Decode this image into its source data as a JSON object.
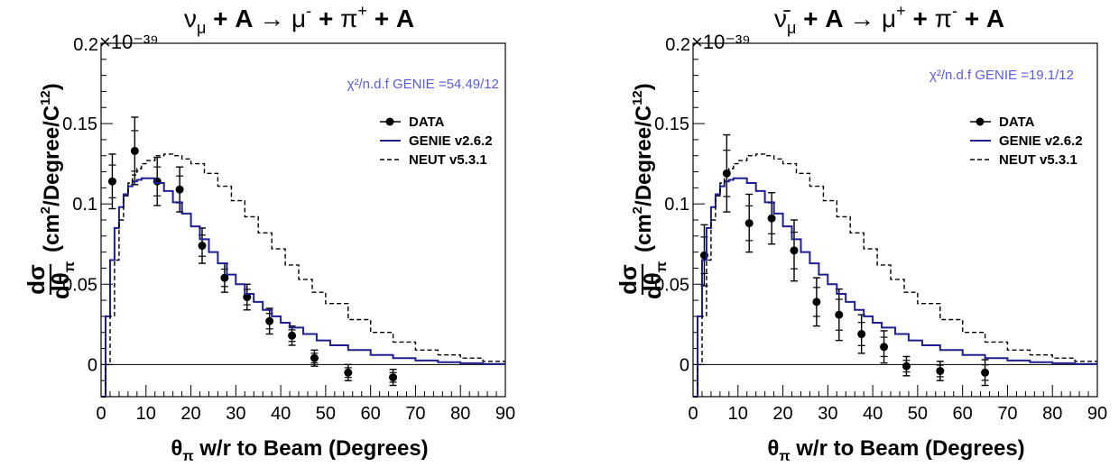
{
  "chart_data": [
    {
      "type": "line",
      "title": "×10⁻³⁹ νμ + A → μ⁻ + π⁺ + A",
      "exponent_label": "×10⁻³⁹",
      "title_parts": [
        "ν",
        "μ",
        " + A → ",
        "μ",
        "-",
        " + ",
        "π",
        "+",
        " + A"
      ],
      "xlabel": "θπ w/r to Beam (Degrees)",
      "ylabel": "dσ/dθπ (cm²/Degree/C¹²)",
      "xlim": [
        0,
        90
      ],
      "ylim": [
        -0.02,
        0.2
      ],
      "xticks": [
        "0",
        "10",
        "20",
        "30",
        "40",
        "50",
        "60",
        "70",
        "80",
        "90"
      ],
      "yticks": [
        "0",
        "0.05",
        "0.1",
        "0.15",
        "0.2"
      ],
      "annotation": "χ²/n.d.f GENIE =54.49/12",
      "legend_placement": "top-right",
      "legend": [
        "DATA",
        "GENIE v2.6.2",
        "NEUT v5.3.1"
      ],
      "series": [
        {
          "name": "DATA",
          "style": "points",
          "x": [
            2.5,
            7.5,
            12.5,
            17.5,
            22.5,
            27.5,
            32.5,
            37.5,
            42.5,
            47.5,
            55,
            65
          ],
          "y": [
            0.114,
            0.133,
            0.114,
            0.109,
            0.074,
            0.054,
            0.042,
            0.027,
            0.018,
            0.004,
            -0.005,
            -0.008
          ],
          "err": [
            0.017,
            0.021,
            0.015,
            0.014,
            0.011,
            0.009,
            0.008,
            0.008,
            0.006,
            0.005,
            0.005,
            0.005
          ]
        },
        {
          "name": "GENIE v2.6.2",
          "style": "step",
          "color": "#1f1f8f",
          "x": [
            0,
            1,
            2,
            3,
            4,
            5,
            6,
            7,
            8,
            9,
            10,
            12,
            14,
            16,
            18,
            20,
            22,
            24,
            26,
            28,
            30,
            32,
            34,
            36,
            38,
            40,
            42,
            45,
            48,
            51,
            55,
            60,
            65,
            70,
            75,
            80,
            85,
            90
          ],
          "y": [
            -0.02,
            0.03,
            0.065,
            0.085,
            0.098,
            0.106,
            0.111,
            0.114,
            0.115,
            0.116,
            0.116,
            0.113,
            0.108,
            0.101,
            0.094,
            0.086,
            0.078,
            0.07,
            0.063,
            0.056,
            0.05,
            0.044,
            0.039,
            0.034,
            0.03,
            0.026,
            0.023,
            0.019,
            0.015,
            0.012,
            0.009,
            0.006,
            0.004,
            0.0025,
            0.0015,
            0.0008,
            0.0004,
            0.0002
          ]
        },
        {
          "name": "NEUT v5.3.1",
          "style": "dashed-step",
          "color": "#000000",
          "x": [
            0,
            1,
            2,
            3,
            4,
            5,
            6,
            7,
            8,
            9,
            10,
            12,
            14,
            16,
            18,
            20,
            23,
            26,
            29,
            32,
            35,
            38,
            41,
            44,
            47,
            50,
            55,
            60,
            65,
            70,
            75,
            80,
            85,
            90
          ],
          "y": [
            -0.02,
            0.0,
            0.03,
            0.065,
            0.09,
            0.105,
            0.113,
            0.118,
            0.122,
            0.125,
            0.127,
            0.13,
            0.131,
            0.13,
            0.128,
            0.125,
            0.119,
            0.111,
            0.102,
            0.092,
            0.082,
            0.072,
            0.062,
            0.053,
            0.045,
            0.038,
            0.028,
            0.02,
            0.014,
            0.009,
            0.006,
            0.004,
            0.002,
            0.001
          ]
        }
      ]
    },
    {
      "type": "line",
      "title": "×10⁻³⁹ ν̄μ + A → μ⁺ + π⁻ + A",
      "exponent_label": "×10⁻³⁹",
      "title_parts": [
        "ν̄",
        "μ",
        " + A → ",
        "μ",
        "+",
        " + ",
        "π",
        "-",
        " + A"
      ],
      "xlabel": "θπ w/r to Beam (Degrees)",
      "ylabel": "dσ/dθπ (cm²/Degree/C¹²)",
      "xlim": [
        0,
        90
      ],
      "ylim": [
        -0.02,
        0.2
      ],
      "xticks": [
        "0",
        "10",
        "20",
        "30",
        "40",
        "50",
        "60",
        "70",
        "80",
        "90"
      ],
      "yticks": [
        "0",
        "0.05",
        "0.1",
        "0.15",
        "0.2"
      ],
      "annotation": "χ²/n.d.f GENIE =19.1/12",
      "legend_placement": "top-right",
      "legend": [
        "DATA",
        "GENIE v2.6.2",
        "NEUT v5.3.1"
      ],
      "series": [
        {
          "name": "DATA",
          "style": "points",
          "x": [
            2.5,
            7.5,
            12.5,
            17.5,
            22.5,
            27.5,
            32.5,
            37.5,
            42.5,
            47.5,
            55,
            65
          ],
          "y": [
            0.068,
            0.119,
            0.088,
            0.091,
            0.071,
            0.039,
            0.031,
            0.019,
            0.011,
            -0.001,
            -0.004,
            -0.005
          ],
          "err": [
            0.019,
            0.024,
            0.018,
            0.016,
            0.019,
            0.015,
            0.016,
            0.012,
            0.01,
            0.006,
            0.006,
            0.008
          ]
        },
        {
          "name": "GENIE v2.6.2",
          "style": "step",
          "color": "#1f1f8f",
          "x": [
            0,
            1,
            2,
            3,
            4,
            5,
            6,
            7,
            8,
            9,
            10,
            12,
            14,
            16,
            18,
            20,
            22,
            24,
            26,
            28,
            30,
            32,
            34,
            36,
            38,
            40,
            42,
            45,
            48,
            51,
            55,
            60,
            65,
            70,
            75,
            80,
            85,
            90
          ],
          "y": [
            -0.02,
            0.03,
            0.065,
            0.085,
            0.098,
            0.106,
            0.111,
            0.114,
            0.115,
            0.116,
            0.116,
            0.113,
            0.108,
            0.101,
            0.094,
            0.086,
            0.078,
            0.07,
            0.063,
            0.056,
            0.05,
            0.044,
            0.039,
            0.034,
            0.03,
            0.026,
            0.023,
            0.019,
            0.015,
            0.012,
            0.009,
            0.006,
            0.004,
            0.0025,
            0.0015,
            0.0008,
            0.0004,
            0.0002
          ]
        },
        {
          "name": "NEUT v5.3.1",
          "style": "dashed-step",
          "color": "#000000",
          "x": [
            0,
            1,
            2,
            3,
            4,
            5,
            6,
            7,
            8,
            9,
            10,
            12,
            14,
            16,
            18,
            20,
            23,
            26,
            29,
            32,
            35,
            38,
            41,
            44,
            47,
            50,
            55,
            60,
            65,
            70,
            75,
            80,
            85,
            90
          ],
          "y": [
            -0.02,
            0.0,
            0.03,
            0.065,
            0.09,
            0.105,
            0.113,
            0.118,
            0.122,
            0.125,
            0.127,
            0.13,
            0.131,
            0.13,
            0.128,
            0.125,
            0.119,
            0.111,
            0.102,
            0.092,
            0.082,
            0.072,
            0.062,
            0.053,
            0.045,
            0.038,
            0.028,
            0.02,
            0.014,
            0.009,
            0.006,
            0.004,
            0.002,
            0.001
          ]
        }
      ]
    }
  ]
}
